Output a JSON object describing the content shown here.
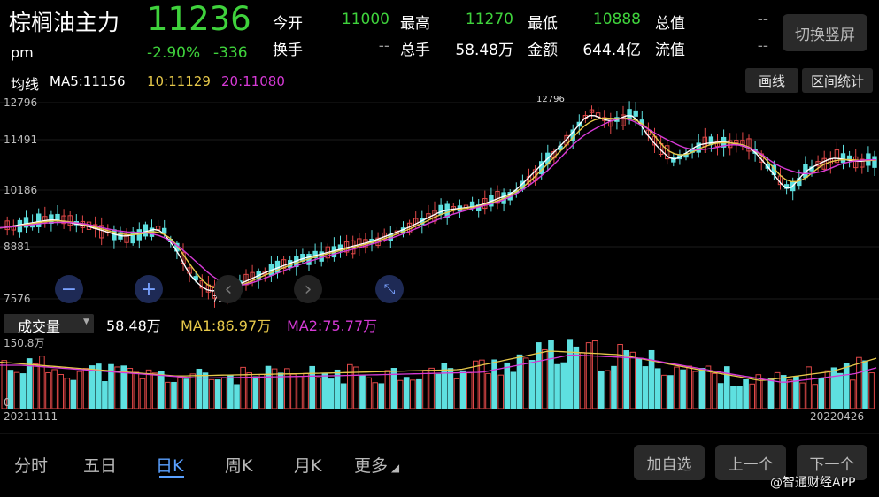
{
  "header": {
    "name": "棕榈油主力",
    "price": "11236",
    "session": "pm",
    "change_pct": "-2.90%",
    "change_abs": "-336",
    "stats": [
      {
        "label": "今开",
        "value": "11000",
        "color": "#3fd23c"
      },
      {
        "label": "最高",
        "value": "11270",
        "color": "#3fd23c"
      },
      {
        "label": "最低",
        "value": "10888",
        "color": "#3fd23c"
      },
      {
        "label": "总值",
        "value": "--",
        "color": "#8a8a8a"
      },
      {
        "label": "换手",
        "value": "--",
        "color": "#8a8a8a"
      },
      {
        "label": "总手",
        "value": "58.48万",
        "color": "#e8e8e8"
      },
      {
        "label": "金额",
        "value": "644.4亿",
        "color": "#e8e8e8"
      },
      {
        "label": "流值",
        "value": "--",
        "color": "#8a8a8a"
      }
    ],
    "switch_button": "切换竖屏"
  },
  "ma_bar": {
    "label": "均线",
    "ma5": "MA5:11156",
    "ma10": "10:11129",
    "ma20": "20:11080",
    "draw_button": "画线",
    "range_button": "区间统计"
  },
  "price_axis": [
    "12796",
    "11491",
    "10186",
    "8881",
    "7576"
  ],
  "annotations": {
    "high": "12796",
    "low": "7576"
  },
  "controls": {
    "zoom_out": "−",
    "zoom_in": "+",
    "prev": "‹",
    "next": "›",
    "fullscreen": "⤡"
  },
  "volume_bar": {
    "selector": "成交量",
    "total": "58.48万",
    "ma1": "MA1:86.97万",
    "ma2": "MA2:75.77万",
    "axis_top": "150.8万",
    "axis_zero": "0"
  },
  "dates": {
    "start": "20211111",
    "end": "20220426"
  },
  "tabs": [
    "分时",
    "五日",
    "日K",
    "周K",
    "月K",
    "更多"
  ],
  "active_tab": 2,
  "bottom_buttons": {
    "add": "加自选",
    "prev": "上一个",
    "next": "下一个"
  },
  "watermark": "@智通财经APP",
  "colors": {
    "up": "#e04848",
    "down": "#5ee0e0",
    "ma5": "#ffffff",
    "ma10": "#e6c84a",
    "ma20": "#d63ad6",
    "accent_green": "#3fd23c",
    "active_tab": "#5aa0ff"
  }
}
